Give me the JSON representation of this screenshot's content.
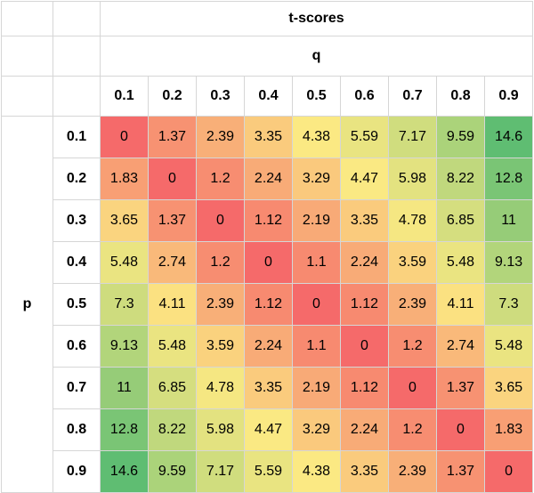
{
  "chart_data": {
    "type": "heatmap",
    "title": "t-scores",
    "xlabel": "q",
    "ylabel": "p",
    "x": [
      "0.1",
      "0.2",
      "0.3",
      "0.4",
      "0.5",
      "0.6",
      "0.7",
      "0.8",
      "0.9"
    ],
    "y": [
      "0.1",
      "0.2",
      "0.3",
      "0.4",
      "0.5",
      "0.6",
      "0.7",
      "0.8",
      "0.9"
    ],
    "values": [
      [
        "0",
        "1.37",
        "2.39",
        "3.35",
        "4.38",
        "5.59",
        "7.17",
        "9.59",
        "14.6"
      ],
      [
        "1.83",
        "0",
        "1.2",
        "2.24",
        "3.29",
        "4.47",
        "5.98",
        "8.22",
        "12.8"
      ],
      [
        "3.65",
        "1.37",
        "0",
        "1.12",
        "2.19",
        "3.35",
        "4.78",
        "6.85",
        "11"
      ],
      [
        "5.48",
        "2.74",
        "1.2",
        "0",
        "1.1",
        "2.24",
        "3.59",
        "5.48",
        "9.13"
      ],
      [
        "7.3",
        "4.11",
        "2.39",
        "1.12",
        "0",
        "1.12",
        "2.39",
        "4.11",
        "7.3"
      ],
      [
        "9.13",
        "5.48",
        "3.59",
        "2.24",
        "1.1",
        "0",
        "1.2",
        "2.74",
        "5.48"
      ],
      [
        "11",
        "6.85",
        "4.78",
        "3.35",
        "2.19",
        "1.12",
        "0",
        "1.37",
        "3.65"
      ],
      [
        "12.8",
        "8.22",
        "5.98",
        "4.47",
        "3.29",
        "2.24",
        "1.2",
        "0",
        "1.83"
      ],
      [
        "14.6",
        "9.59",
        "7.17",
        "5.59",
        "4.38",
        "3.35",
        "2.39",
        "1.37",
        "0"
      ]
    ],
    "color_scale": {
      "low": "#f56a6a",
      "mid": "#fbe983",
      "high": "#5fbd72"
    },
    "grid": true,
    "legend": "none"
  }
}
